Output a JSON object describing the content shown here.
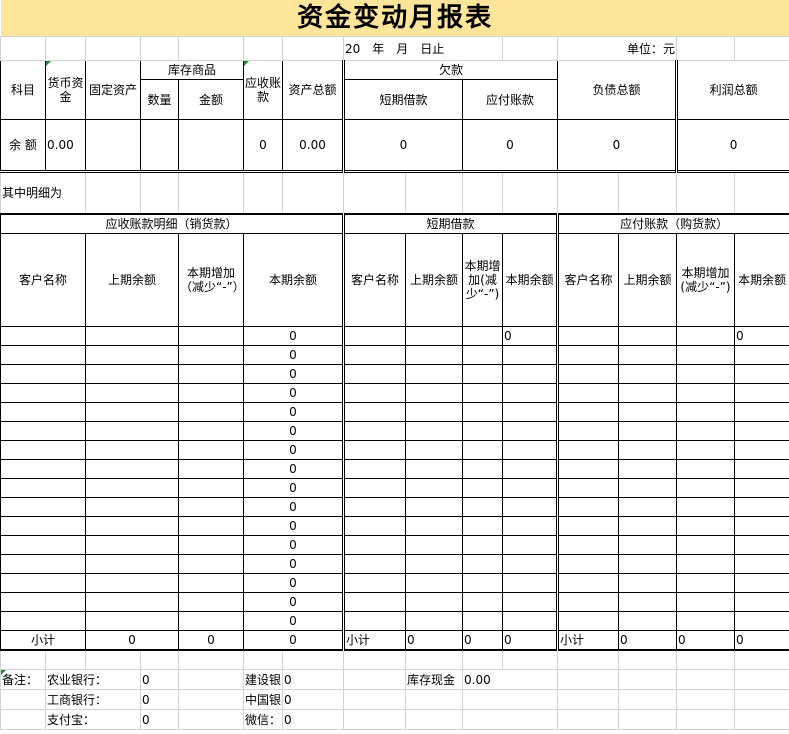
{
  "title": "资金变动月报表",
  "date_line": "20　年　月　日止",
  "unit": "单位：元",
  "summary": {
    "headers": {
      "subject": "科目",
      "cash": "货币资金",
      "fixed_assets": "固定资产",
      "inventory": "库存商品",
      "qty": "数量",
      "amount": "金额",
      "receivable": "应收账款",
      "total_assets": "资产总额",
      "debt": "欠款",
      "short_loan": "短期借款",
      "payable": "应付账款",
      "total_liabilities": "负债总额",
      "total_profit": "利润总额"
    },
    "row_label": "余  额",
    "values": {
      "cash": "0.00",
      "fixed_assets": "",
      "qty": "",
      "amount": "",
      "receivable": "0",
      "total_assets": "0.00",
      "short_loan": "0",
      "payable": "0",
      "total_liabilities": "0",
      "total_profit": "0"
    }
  },
  "detail_note": "其中明细为",
  "detail": {
    "receivable": {
      "title": "应收账款明细（销货款）",
      "cols": [
        "客户名称",
        "上期余额",
        "本期增加（减少“-”）",
        "本期余额"
      ],
      "rows": [
        "0",
        "0",
        "0",
        "0",
        "0",
        "0",
        "0",
        "0",
        "0",
        "0",
        "0",
        "0",
        "0",
        "0",
        "0",
        "0"
      ],
      "subtotal": [
        "小计",
        "0",
        "0",
        "0"
      ]
    },
    "short_loan": {
      "title": "短期借款",
      "cols": [
        "客户名称",
        "上期余额",
        "本期增加(减少“-”)",
        "本期余额"
      ],
      "rows": [
        "0",
        "",
        "",
        "",
        "",
        "",
        "",
        "",
        "",
        "",
        "",
        "",
        "",
        "",
        "",
        ""
      ],
      "subtotal": [
        "小计",
        "0",
        "0",
        "0"
      ]
    },
    "payable": {
      "title": "应付账款（购货款）",
      "cols": [
        "客户名称",
        "上期余额",
        "本期增加(减少“-”)",
        "本期余额"
      ],
      "rows": [
        "0",
        "",
        "",
        "",
        "",
        "",
        "",
        "",
        "",
        "",
        "",
        "",
        "",
        "",
        "",
        ""
      ],
      "subtotal": [
        "小计",
        "0",
        "0",
        "0"
      ]
    }
  },
  "notes": {
    "label": "备注：",
    "items": [
      {
        "l1": "农业银行：",
        "v1": "0",
        "l2": "建设银",
        "v2": "0",
        "l3": "库存现金",
        "v3": "0.00"
      },
      {
        "l1": "工商银行：",
        "v1": "0",
        "l2": "中国银",
        "v2": "0"
      },
      {
        "l1": "支付宝：",
        "v1": "0",
        "l2": "微信：",
        "v2": "0"
      }
    ]
  },
  "colors": {
    "title_bg": "#fde59a",
    "grid": "#d4d4d4",
    "comment_marker": "#1f8a3a"
  }
}
